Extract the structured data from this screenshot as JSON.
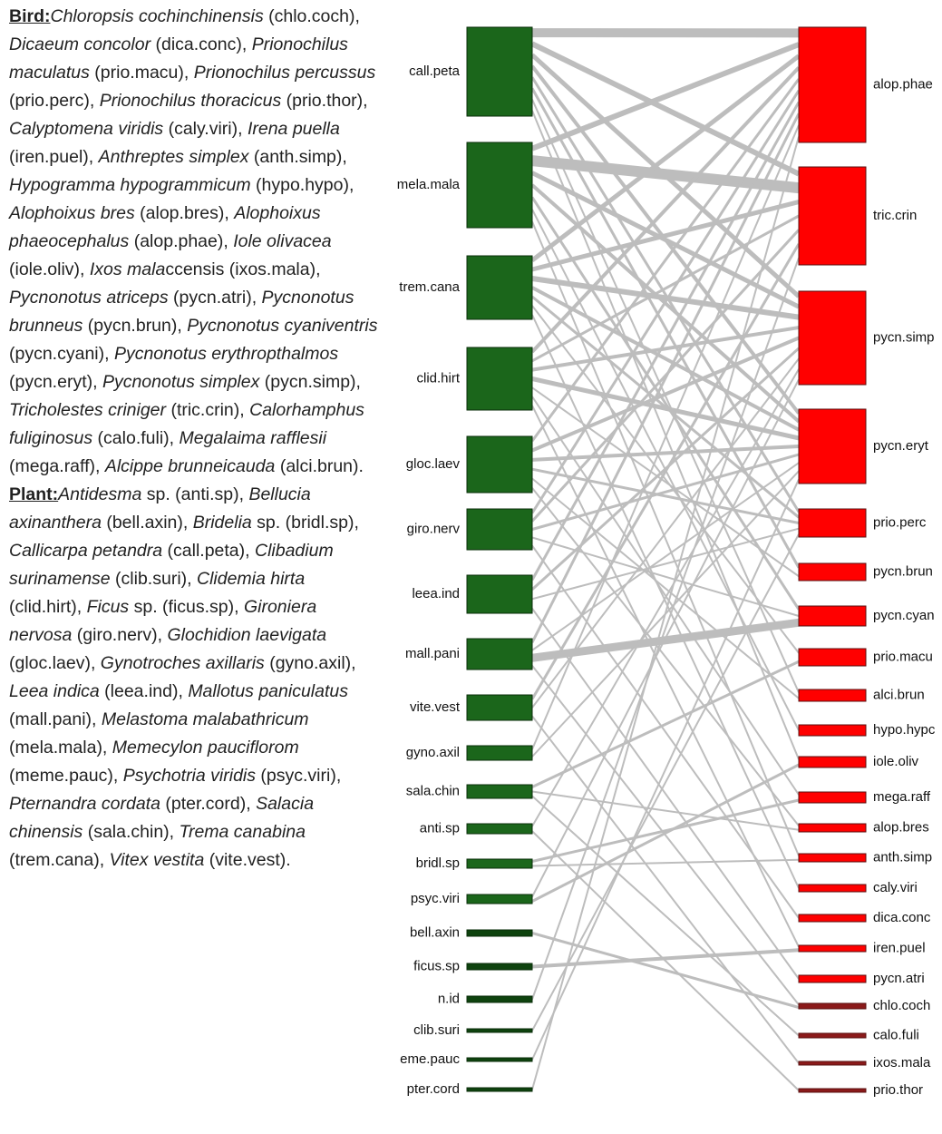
{
  "legend": {
    "bird": {
      "heading": "Bird:",
      "segments": [
        {
          "text": "Chloropsis cochinchinensis",
          "italic": true
        },
        {
          "text": " (chlo.coch), ",
          "italic": false
        },
        {
          "text": "Dicaeum concolor",
          "italic": true
        },
        {
          "text": " (dica.conc), ",
          "italic": false
        },
        {
          "text": "Prionochilus maculatus",
          "italic": true
        },
        {
          "text": " (prio.macu), ",
          "italic": false
        },
        {
          "text": "Prionochilus percussus",
          "italic": true
        },
        {
          "text": " (prio.perc), ",
          "italic": false
        },
        {
          "text": "Prionochilus thoracicus",
          "italic": true
        },
        {
          "text": " (prio.thor), ",
          "italic": false
        },
        {
          "text": "Calyptomena viridis",
          "italic": true
        },
        {
          "text": " (caly.viri), ",
          "italic": false
        },
        {
          "text": "Irena puella",
          "italic": true
        },
        {
          "text": " (iren.puel), ",
          "italic": false
        },
        {
          "text": "Anthreptes simplex",
          "italic": true
        },
        {
          "text": " (anth.simp), ",
          "italic": false
        },
        {
          "text": "Hypogramma hypogrammicum",
          "italic": true
        },
        {
          "text": " (hypo.hypo), ",
          "italic": false
        },
        {
          "text": "Alophoixus bres",
          "italic": true
        },
        {
          "text": " (alop.bres), ",
          "italic": false
        },
        {
          "text": "Alophoixus phaeocephalus",
          "italic": true
        },
        {
          "text": " (alop.phae), ",
          "italic": false
        },
        {
          "text": "Iole olivacea",
          "italic": true
        },
        {
          "text": " (iole.oliv), ",
          "italic": false
        },
        {
          "text": "Ixos mala",
          "italic": true
        },
        {
          "text": "ccensis (ixos.mala), ",
          "italic": false
        },
        {
          "text": "Pycnonotus atriceps",
          "italic": true
        },
        {
          "text": " (pycn.atri), ",
          "italic": false
        },
        {
          "text": "Pycnonotus brunneus",
          "italic": true
        },
        {
          "text": " (pycn.brun), ",
          "italic": false
        },
        {
          "text": "Pycnonotus cyaniventris",
          "italic": true
        },
        {
          "text": " (pycn.cyani), ",
          "italic": false
        },
        {
          "text": "Pycnonotus erythropthalmos",
          "italic": true
        },
        {
          "text": " (pycn.eryt), ",
          "italic": false
        },
        {
          "text": "Pycnonotus simplex",
          "italic": true
        },
        {
          "text": " (pycn.simp), ",
          "italic": false
        },
        {
          "text": "Tricholestes criniger",
          "italic": true
        },
        {
          "text": " (tric.crin), ",
          "italic": false
        },
        {
          "text": "Calorhamphus fuliginosus",
          "italic": true
        },
        {
          "text": " (calo.fuli), ",
          "italic": false
        },
        {
          "text": "Megalaima rafflesii",
          "italic": true
        },
        {
          "text": " (mega.raff), ",
          "italic": false
        },
        {
          "text": "Alcippe brunneicauda",
          "italic": true
        },
        {
          "text": " (alci.brun).",
          "italic": false
        }
      ]
    },
    "plant": {
      "heading": "Plant:",
      "segments": [
        {
          "text": "Antidesma",
          "italic": true
        },
        {
          "text": " sp. (anti.sp), ",
          "italic": false
        },
        {
          "text": "Bellucia axinanthera",
          "italic": true
        },
        {
          "text": " (bell.axin), ",
          "italic": false
        },
        {
          "text": "Bridelia",
          "italic": true
        },
        {
          "text": " sp. (bridl.sp), ",
          "italic": false
        },
        {
          "text": "Callicarpa petandra",
          "italic": true
        },
        {
          "text": " (call.peta), ",
          "italic": false
        },
        {
          "text": "Clibadium surinamense",
          "italic": true
        },
        {
          "text": " (clib.suri), ",
          "italic": false
        },
        {
          "text": "Clidemia hirta",
          "italic": true
        },
        {
          "text": " (clid.hirt), ",
          "italic": false
        },
        {
          "text": "Ficus",
          "italic": true
        },
        {
          "text": " sp. (ficus.sp), ",
          "italic": false
        },
        {
          "text": "Gironiera nervosa",
          "italic": true
        },
        {
          "text": " (giro.nerv), ",
          "italic": false
        },
        {
          "text": "Glochidion laevigata",
          "italic": true
        },
        {
          "text": " (gloc.laev), ",
          "italic": false
        },
        {
          "text": "Gynotroches axillaris",
          "italic": true
        },
        {
          "text": " (gyno.axil), ",
          "italic": false
        },
        {
          "text": "Leea indica",
          "italic": true
        },
        {
          "text": " (leea.ind), ",
          "italic": false
        },
        {
          "text": "Mallotus paniculatus",
          "italic": true
        },
        {
          "text": " (mall.pani), ",
          "italic": false
        },
        {
          "text": "Melastoma malabathricum",
          "italic": true
        },
        {
          "text": " (mela.mala), ",
          "italic": false
        },
        {
          "text": "Memecylon pauciflorom",
          "italic": true
        },
        {
          "text": " (meme.pauc), ",
          "italic": false
        },
        {
          "text": "Psychotria viridis",
          "italic": true
        },
        {
          "text": " (psyc.viri), ",
          "italic": false
        },
        {
          "text": "Pternandra cordata",
          "italic": true
        },
        {
          "text": " (pter.cord), ",
          "italic": false
        },
        {
          "text": "Salacia chinensis",
          "italic": true
        },
        {
          "text": " (sala.chin), ",
          "italic": false
        },
        {
          "text": "Trema canabina",
          "italic": true
        },
        {
          "text": " (trem.cana), ",
          "italic": false
        },
        {
          "text": "Vitex vestita",
          "italic": true
        },
        {
          "text": " (vite.vest).",
          "italic": false
        }
      ]
    }
  },
  "nodes": {
    "plants": [
      {
        "label": "call.peta"
      },
      {
        "label": "mela.mala"
      },
      {
        "label": "trem.cana"
      },
      {
        "label": "clid.hirt"
      },
      {
        "label": "gloc.laev"
      },
      {
        "label": "giro.nerv"
      },
      {
        "label": "leea.ind"
      },
      {
        "label": "mall.pani"
      },
      {
        "label": "vite.vest"
      },
      {
        "label": "gyno.axil"
      },
      {
        "label": "sala.chin"
      },
      {
        "label": "anti.sp"
      },
      {
        "label": "bridl.sp"
      },
      {
        "label": "psyc.viri"
      },
      {
        "label": "bell.axin"
      },
      {
        "label": "ficus.sp"
      },
      {
        "label": "n.id"
      },
      {
        "label": "clib.suri"
      },
      {
        "label": "eme.pauc"
      },
      {
        "label": "pter.cord"
      }
    ],
    "birds": [
      {
        "label": "alop.phae"
      },
      {
        "label": "tric.crin"
      },
      {
        "label": "pycn.simp"
      },
      {
        "label": "pycn.eryt"
      },
      {
        "label": "prio.perc"
      },
      {
        "label": "pycn.brun"
      },
      {
        "label": "pycn.cyan"
      },
      {
        "label": "prio.macu"
      },
      {
        "label": "alci.brun"
      },
      {
        "label": "hypo.hypc"
      },
      {
        "label": "iole.oliv"
      },
      {
        "label": "mega.raff"
      },
      {
        "label": "alop.bres"
      },
      {
        "label": "anth.simp"
      },
      {
        "label": "caly.viri"
      },
      {
        "label": "dica.conc"
      },
      {
        "label": "iren.puel"
      },
      {
        "label": "pycn.atri"
      },
      {
        "label": "chlo.coch"
      },
      {
        "label": "calo.fuli"
      },
      {
        "label": "ixos.mala"
      },
      {
        "label": "prio.thor"
      }
    ]
  }
}
